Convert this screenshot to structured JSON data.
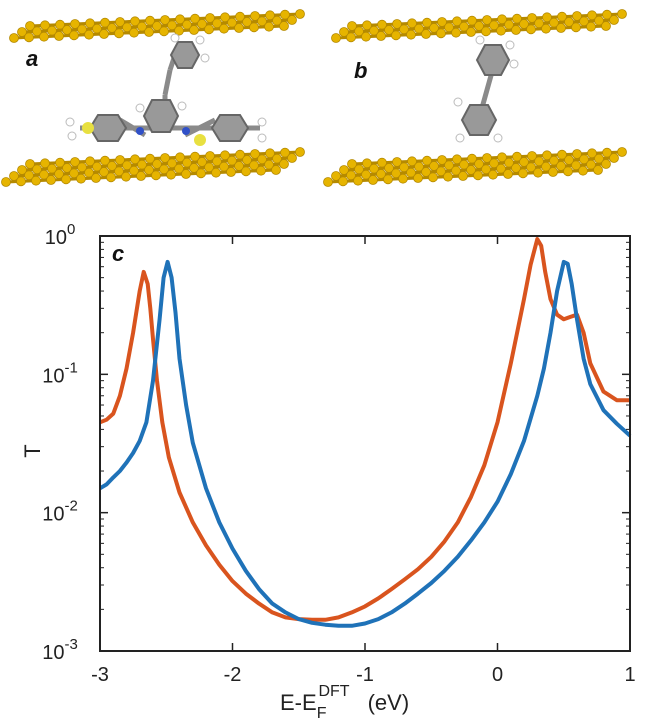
{
  "panels": {
    "a": "a",
    "b": "b",
    "c": "c"
  },
  "colors": {
    "gold": "#e6b400",
    "gold_dark": "#b58a00",
    "carbon": "#777777",
    "sulfur": "#e8e040",
    "nitrogen": "#3050c8"
  },
  "chart_data": {
    "type": "line",
    "title": "",
    "ylabel": "T",
    "xlabel_main": "E-E",
    "xlabel_sub": "F",
    "xlabel_sup": "DFT",
    "xlabel_unit": "(eV)",
    "xlim": [
      -3,
      1
    ],
    "ylim": [
      0.001,
      1
    ],
    "yscale": "log",
    "xticks": [
      -3,
      -2,
      -1,
      0,
      1
    ],
    "xtick_labels": [
      "-3",
      "-2",
      "-1",
      "0",
      "1"
    ],
    "yticks": [
      0.001,
      0.01,
      0.1,
      1
    ],
    "ytick_base": [
      "10",
      "10",
      "10",
      "10"
    ],
    "ytick_exp": [
      "-3",
      "-2",
      "-1",
      "0"
    ],
    "grid": false,
    "series": [
      {
        "color": "#d9541e",
        "x": [
          -3.0,
          -2.95,
          -2.9,
          -2.85,
          -2.8,
          -2.75,
          -2.7,
          -2.67,
          -2.64,
          -2.62,
          -2.6,
          -2.57,
          -2.53,
          -2.48,
          -2.4,
          -2.3,
          -2.2,
          -2.1,
          -2.0,
          -1.9,
          -1.8,
          -1.7,
          -1.6,
          -1.5,
          -1.4,
          -1.3,
          -1.2,
          -1.1,
          -1.0,
          -0.9,
          -0.8,
          -0.7,
          -0.6,
          -0.5,
          -0.4,
          -0.3,
          -0.2,
          -0.1,
          0.0,
          0.1,
          0.2,
          0.25,
          0.3,
          0.33,
          0.36,
          0.4,
          0.45,
          0.5,
          0.55,
          0.6,
          0.65,
          0.7,
          0.8,
          0.9,
          1.0
        ],
        "y": [
          0.045,
          0.047,
          0.052,
          0.07,
          0.11,
          0.2,
          0.4,
          0.55,
          0.45,
          0.3,
          0.18,
          0.09,
          0.045,
          0.025,
          0.014,
          0.0085,
          0.0058,
          0.0042,
          0.0032,
          0.0026,
          0.0022,
          0.0019,
          0.00175,
          0.0017,
          0.00168,
          0.00168,
          0.00175,
          0.0019,
          0.0021,
          0.0024,
          0.0028,
          0.0033,
          0.0039,
          0.0048,
          0.0062,
          0.0085,
          0.013,
          0.022,
          0.045,
          0.12,
          0.35,
          0.62,
          0.95,
          0.85,
          0.55,
          0.35,
          0.27,
          0.25,
          0.26,
          0.27,
          0.2,
          0.12,
          0.075,
          0.065,
          0.065
        ]
      },
      {
        "color": "#1f72b8",
        "x": [
          -3.0,
          -2.95,
          -2.9,
          -2.85,
          -2.8,
          -2.75,
          -2.7,
          -2.65,
          -2.6,
          -2.55,
          -2.52,
          -2.49,
          -2.46,
          -2.43,
          -2.4,
          -2.35,
          -2.3,
          -2.2,
          -2.1,
          -2.0,
          -1.9,
          -1.8,
          -1.7,
          -1.6,
          -1.5,
          -1.4,
          -1.3,
          -1.2,
          -1.1,
          -1.0,
          -0.9,
          -0.8,
          -0.7,
          -0.6,
          -0.5,
          -0.4,
          -0.3,
          -0.2,
          -0.1,
          0.0,
          0.1,
          0.2,
          0.3,
          0.35,
          0.4,
          0.45,
          0.5,
          0.53,
          0.56,
          0.6,
          0.65,
          0.7,
          0.8,
          0.9,
          1.0
        ],
        "y": [
          0.015,
          0.016,
          0.018,
          0.02,
          0.023,
          0.027,
          0.033,
          0.045,
          0.09,
          0.25,
          0.5,
          0.65,
          0.5,
          0.28,
          0.13,
          0.06,
          0.032,
          0.015,
          0.0085,
          0.0055,
          0.0038,
          0.0028,
          0.0022,
          0.0019,
          0.0017,
          0.0016,
          0.00155,
          0.00152,
          0.00152,
          0.00158,
          0.0017,
          0.0019,
          0.0022,
          0.0026,
          0.0031,
          0.0038,
          0.0048,
          0.0063,
          0.0085,
          0.012,
          0.019,
          0.033,
          0.07,
          0.11,
          0.2,
          0.4,
          0.65,
          0.63,
          0.45,
          0.25,
          0.13,
          0.085,
          0.055,
          0.044,
          0.036
        ]
      }
    ]
  }
}
